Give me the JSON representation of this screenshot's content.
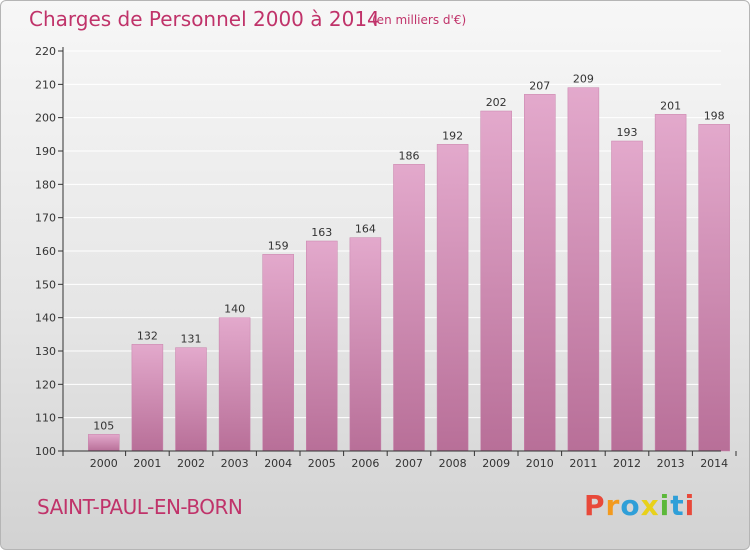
{
  "header": {
    "title": "Charges de Personnel 2000 à 2014",
    "subtitle": "(en milliers d'€)"
  },
  "footer": {
    "town": "SAINT-PAUL-EN-BORN",
    "brand": "Proxiti",
    "brand_colors": [
      "#e8493a",
      "#f39a1e",
      "#2f9fd8",
      "#e8d11a",
      "#5cb83a",
      "#2f9fd8",
      "#e8493a"
    ]
  },
  "colors": {
    "title": "#c0336a",
    "bar_top": "#e3a9cc",
    "bar_bottom": "#b86f98",
    "bar_edge": "#c781aa",
    "axis": "#333333",
    "grid": "#ffffff"
  },
  "chart_data": {
    "type": "bar",
    "categories": [
      "2000",
      "2001",
      "2002",
      "2003",
      "2004",
      "2005",
      "2006",
      "2007",
      "2008",
      "2009",
      "2010",
      "2011",
      "2012",
      "2013",
      "2014"
    ],
    "values": [
      105,
      132,
      131,
      140,
      159,
      163,
      164,
      186,
      192,
      202,
      207,
      209,
      193,
      201,
      198
    ],
    "yticks": [
      100,
      110,
      120,
      130,
      140,
      150,
      160,
      170,
      180,
      190,
      200,
      210,
      220
    ],
    "ylim": [
      100,
      220
    ],
    "grid": true,
    "data_labels": true
  }
}
